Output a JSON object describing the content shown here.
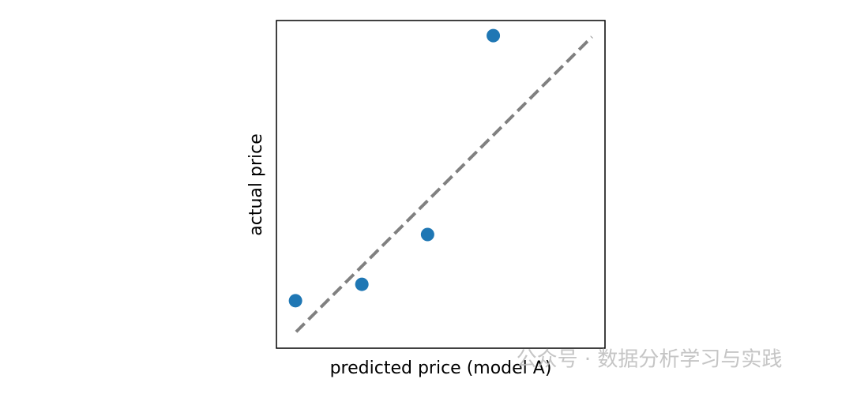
{
  "chart_data": {
    "type": "scatter",
    "xlabel": "predicted price (model A)",
    "ylabel": "actual price",
    "x": [
      0.058,
      0.26,
      0.46,
      0.66
    ],
    "series": [
      {
        "color": "#1f77b4",
        "values": [
          0.145,
          0.195,
          0.347,
          0.954
        ]
      }
    ],
    "xlim": [
      0,
      1
    ],
    "ylim": [
      0,
      1
    ],
    "reference_line": {
      "x": [
        0.06,
        0.96
      ],
      "y": [
        0.05,
        0.95
      ],
      "color": "#808080"
    }
  },
  "watermark": "公众号 · 数据分析学习与实践"
}
